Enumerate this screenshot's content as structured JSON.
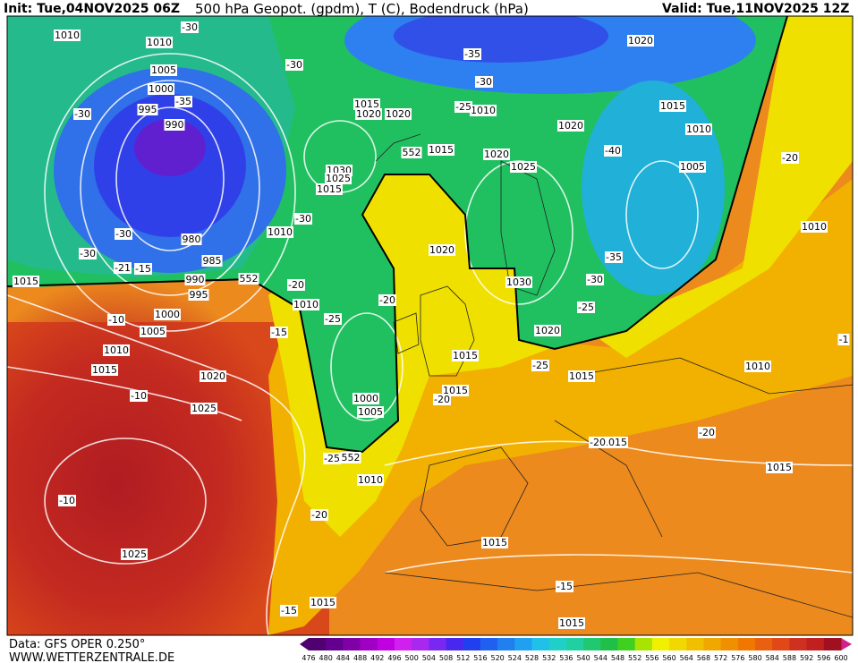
{
  "header": {
    "init": "Init: Tue,04NOV2025 06Z",
    "title": "500 hPa Geopot. (gpdm), T (C), Bodendruck (hPa)",
    "valid": "Valid: Tue,11NOV2025 12Z"
  },
  "footer": {
    "data_source": "Data: GFS OPER 0.250°",
    "website": "WWW.WETTERZENTRALE.DE"
  },
  "isobar_labels": [
    "1010",
    "1010",
    "1005",
    "1000",
    "995",
    "990",
    "980",
    "985",
    "990",
    "995",
    "1000",
    "1005",
    "1010",
    "1015",
    "1015",
    "1020",
    "1025",
    "1025",
    "1010",
    "1010",
    "1015",
    "1020",
    "1020",
    "1015",
    "1025",
    "1030",
    "1015",
    "1010",
    "1020",
    "1025",
    "1020",
    "1020",
    "1015",
    "1010",
    "1005",
    "1010",
    "1020",
    "1030",
    "1020",
    "1015",
    "1015",
    "1000",
    "1005",
    "1010",
    "1015",
    "1010",
    "1015",
    "1015",
    "1015",
    "1015",
    "1015"
  ],
  "temperature_labels": [
    "-30",
    "-30",
    "-35",
    "-30",
    "-35",
    "-30",
    "-25",
    "-30",
    "-30",
    "-30",
    "-21",
    "-15",
    "-20",
    "-20",
    "-25",
    "-15",
    "-10",
    "-10",
    "-10",
    "-20",
    "-25",
    "-20",
    "-25",
    "-25",
    "-30",
    "-35",
    "-40",
    "-20",
    "-20",
    "-20",
    "-15",
    "-15",
    "-1"
  ],
  "height_labels": [
    "552",
    "552",
    "552"
  ],
  "colorbar": {
    "levels": [
      476,
      480,
      484,
      488,
      492,
      496,
      500,
      504,
      508,
      512,
      516,
      520,
      524,
      528,
      532,
      536,
      540,
      544,
      548,
      552,
      556,
      560,
      564,
      568,
      572,
      576,
      580,
      584,
      588,
      592,
      596,
      600
    ],
    "colors": [
      "#500070",
      "#640090",
      "#8000a8",
      "#a000c4",
      "#c000e0",
      "#d020f0",
      "#a828f0",
      "#7828f0",
      "#4828f0",
      "#2040f0",
      "#2060f0",
      "#2080f0",
      "#20a0f0",
      "#20c0e8",
      "#20d0c8",
      "#20d0a0",
      "#20c870",
      "#20c048",
      "#40d020",
      "#a8e400",
      "#f0f000",
      "#f0d800",
      "#f0c000",
      "#f0a800",
      "#f09000",
      "#f07800",
      "#e86010",
      "#e04818",
      "#d03020",
      "#c02020",
      "#a01020"
    ]
  }
}
